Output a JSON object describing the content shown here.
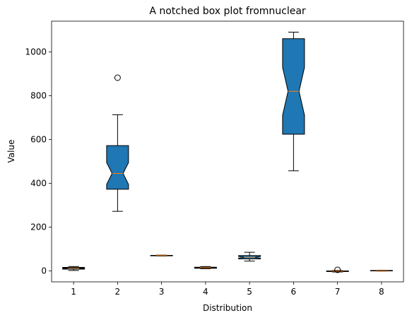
{
  "chart_data": {
    "type": "boxplot",
    "notched": true,
    "title": "A notched box plot fromnuclear",
    "xlabel": "Distribution",
    "ylabel": "Value",
    "ylim": [
      -50,
      1140
    ],
    "yticks": [
      0,
      200,
      400,
      600,
      800,
      1000
    ],
    "categories": [
      "1",
      "2",
      "3",
      "4",
      "5",
      "6",
      "7",
      "8"
    ],
    "boxes": [
      {
        "label": "1",
        "whislo": 2,
        "q1": 8,
        "med": 12,
        "q3": 16,
        "whishi": 20,
        "fliers": []
      },
      {
        "label": "2",
        "whislo": 272,
        "q1": 373,
        "med": 445,
        "q3": 572,
        "whishi": 713,
        "fliers": [
          882
        ]
      },
      {
        "label": "3",
        "whislo": 68,
        "q1": 69,
        "med": 70,
        "q3": 71,
        "whishi": 72,
        "fliers": []
      },
      {
        "label": "4",
        "whislo": 10,
        "q1": 12,
        "med": 15,
        "q3": 17,
        "whishi": 20,
        "fliers": []
      },
      {
        "label": "5",
        "whislo": 45,
        "q1": 55,
        "med": 62,
        "q3": 70,
        "whishi": 85,
        "fliers": []
      },
      {
        "label": "6",
        "whislo": 457,
        "q1": 624,
        "med": 820,
        "q3": 1060,
        "whishi": 1090,
        "fliers": []
      },
      {
        "label": "7",
        "whislo": -5,
        "q1": -3,
        "med": -1,
        "q3": 0,
        "whishi": 2,
        "fliers": [
          5
        ]
      },
      {
        "label": "8",
        "whislo": -1,
        "q1": 0,
        "med": 1,
        "q3": 2,
        "whishi": 3,
        "fliers": []
      }
    ],
    "colors": {
      "box_fill": "#1f77b4",
      "median": "#ff7f0e",
      "line": "#000000"
    }
  }
}
